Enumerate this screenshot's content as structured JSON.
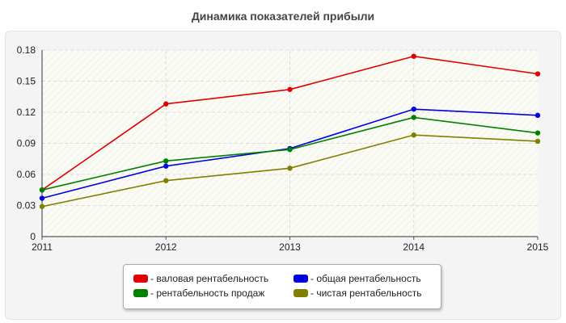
{
  "chart_data": {
    "type": "line",
    "title": "Динамика показателей прибыли",
    "x": [
      "2011",
      "2012",
      "2013",
      "2014",
      "2015"
    ],
    "ylim": [
      0,
      0.18
    ],
    "yticks": [
      "0",
      "0.03",
      "0.06",
      "0.09",
      "0.12",
      "0.15",
      "0.18"
    ],
    "grid": true,
    "legend_position": "bottom",
    "series": [
      {
        "name": "- валовая рентабельность",
        "color": "#e00000",
        "values": [
          0.045,
          0.128,
          0.142,
          0.174,
          0.157
        ]
      },
      {
        "name": "- общая рентабельность",
        "color": "#0000e0",
        "values": [
          0.037,
          0.068,
          0.085,
          0.123,
          0.117
        ]
      },
      {
        "name": "- рентабельность продаж",
        "color": "#008000",
        "values": [
          0.045,
          0.073,
          0.084,
          0.115,
          0.1
        ]
      },
      {
        "name": "- чистая рентабельность",
        "color": "#808000",
        "values": [
          0.029,
          0.054,
          0.066,
          0.098,
          0.092
        ]
      }
    ]
  }
}
